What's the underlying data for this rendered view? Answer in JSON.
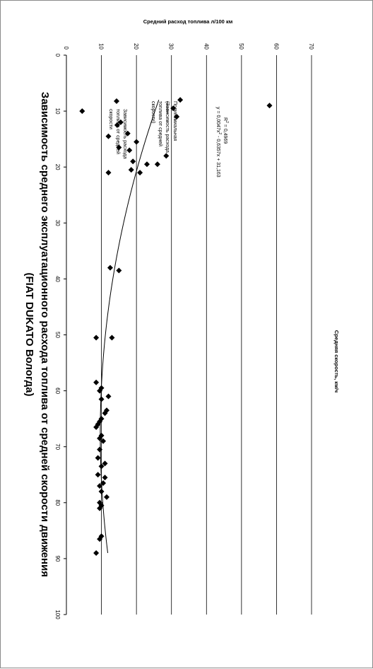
{
  "chart_data": {
    "type": "scatter",
    "title": "Зависимость среднего эксплуатационного расхода топлива от средней скорости движения",
    "subtitle": "(FIAT DUKATO Вологда)",
    "xlabel": "Средняя скорость,  км/ч",
    "ylabel": "Средний расход топлива  л/100 км",
    "xlim": [
      0,
      100
    ],
    "ylim": [
      0,
      70
    ],
    "xticks": [
      "0",
      "10",
      "20",
      "30",
      "40",
      "50",
      "60",
      "70",
      "80",
      "90",
      "100"
    ],
    "yticks": [
      "0",
      "10",
      "20",
      "30",
      "40",
      "50",
      "60",
      "70"
    ],
    "grid": "horizontal major gridlines",
    "legend_position": "right",
    "series": [
      {
        "name": "Зависимость расхода топлива от средней скорости",
        "marker": "diamond",
        "points": [
          [
            8,
            32.5
          ],
          [
            9,
            58
          ],
          [
            9.5,
            30.5
          ],
          [
            10,
            4.5
          ],
          [
            11,
            31.5
          ],
          [
            12,
            15.5
          ],
          [
            12.5,
            14.5
          ],
          [
            14,
            17.5
          ],
          [
            14.5,
            12
          ],
          [
            15.5,
            20
          ],
          [
            16.5,
            15
          ],
          [
            17,
            18
          ],
          [
            18,
            28.5
          ],
          [
            19,
            19
          ],
          [
            19.5,
            23
          ],
          [
            19.5,
            26
          ],
          [
            20.5,
            18.5
          ],
          [
            21,
            12
          ],
          [
            21,
            21
          ],
          [
            38,
            12.5
          ],
          [
            38.5,
            15
          ],
          [
            50.5,
            13
          ],
          [
            50.5,
            8.5
          ],
          [
            58.5,
            8.5
          ],
          [
            59.5,
            10
          ],
          [
            60,
            9.5
          ],
          [
            61,
            12
          ],
          [
            61.5,
            10
          ],
          [
            63.5,
            11.5
          ],
          [
            64,
            11
          ],
          [
            65,
            10
          ],
          [
            65.5,
            9.5
          ],
          [
            66,
            9
          ],
          [
            66.5,
            8.5
          ],
          [
            68,
            10
          ],
          [
            68.5,
            9.5
          ],
          [
            69,
            10.5
          ],
          [
            70.5,
            9.5
          ],
          [
            72,
            9
          ],
          [
            73,
            11
          ],
          [
            73.5,
            10
          ],
          [
            75,
            9
          ],
          [
            75.5,
            11
          ],
          [
            76.5,
            10.5
          ],
          [
            77,
            9.5
          ],
          [
            78,
            10
          ],
          [
            79,
            11.5
          ],
          [
            80,
            9.5
          ],
          [
            80.5,
            10
          ],
          [
            81,
            9.5
          ],
          [
            86,
            10
          ],
          [
            86.5,
            9.5
          ],
          [
            89,
            8.5
          ]
        ]
      },
      {
        "name": "Полиномиальная (Зависимость расхода топлива от средней скорости)",
        "line": "polynomial trend",
        "equation": "y = 0,0047x² - 0,6357x + 31,163",
        "r_squared": "R² = 0,4969",
        "coefficients": {
          "a": 0.0047,
          "b": -0.6357,
          "c": 31.163
        },
        "x_range": [
          8,
          89
        ]
      }
    ]
  },
  "legend": {
    "marker_label": "Зависимость расхода топлива от средней скорости",
    "marker_lines": [
      "Зависимость расхода",
      "топлива от средней",
      "скорости"
    ],
    "trend_lines": [
      "Полиномиальная",
      "(Зависимость расхода",
      "топлива от средней",
      "скорости)"
    ],
    "equation_prefix": "y = 0,0047x",
    "equation_sup": "2",
    "equation_suffix": " - 0,6357x + 31,163",
    "r2_prefix": "R",
    "r2_sup": "2",
    "r2_suffix": " = 0,4969"
  }
}
